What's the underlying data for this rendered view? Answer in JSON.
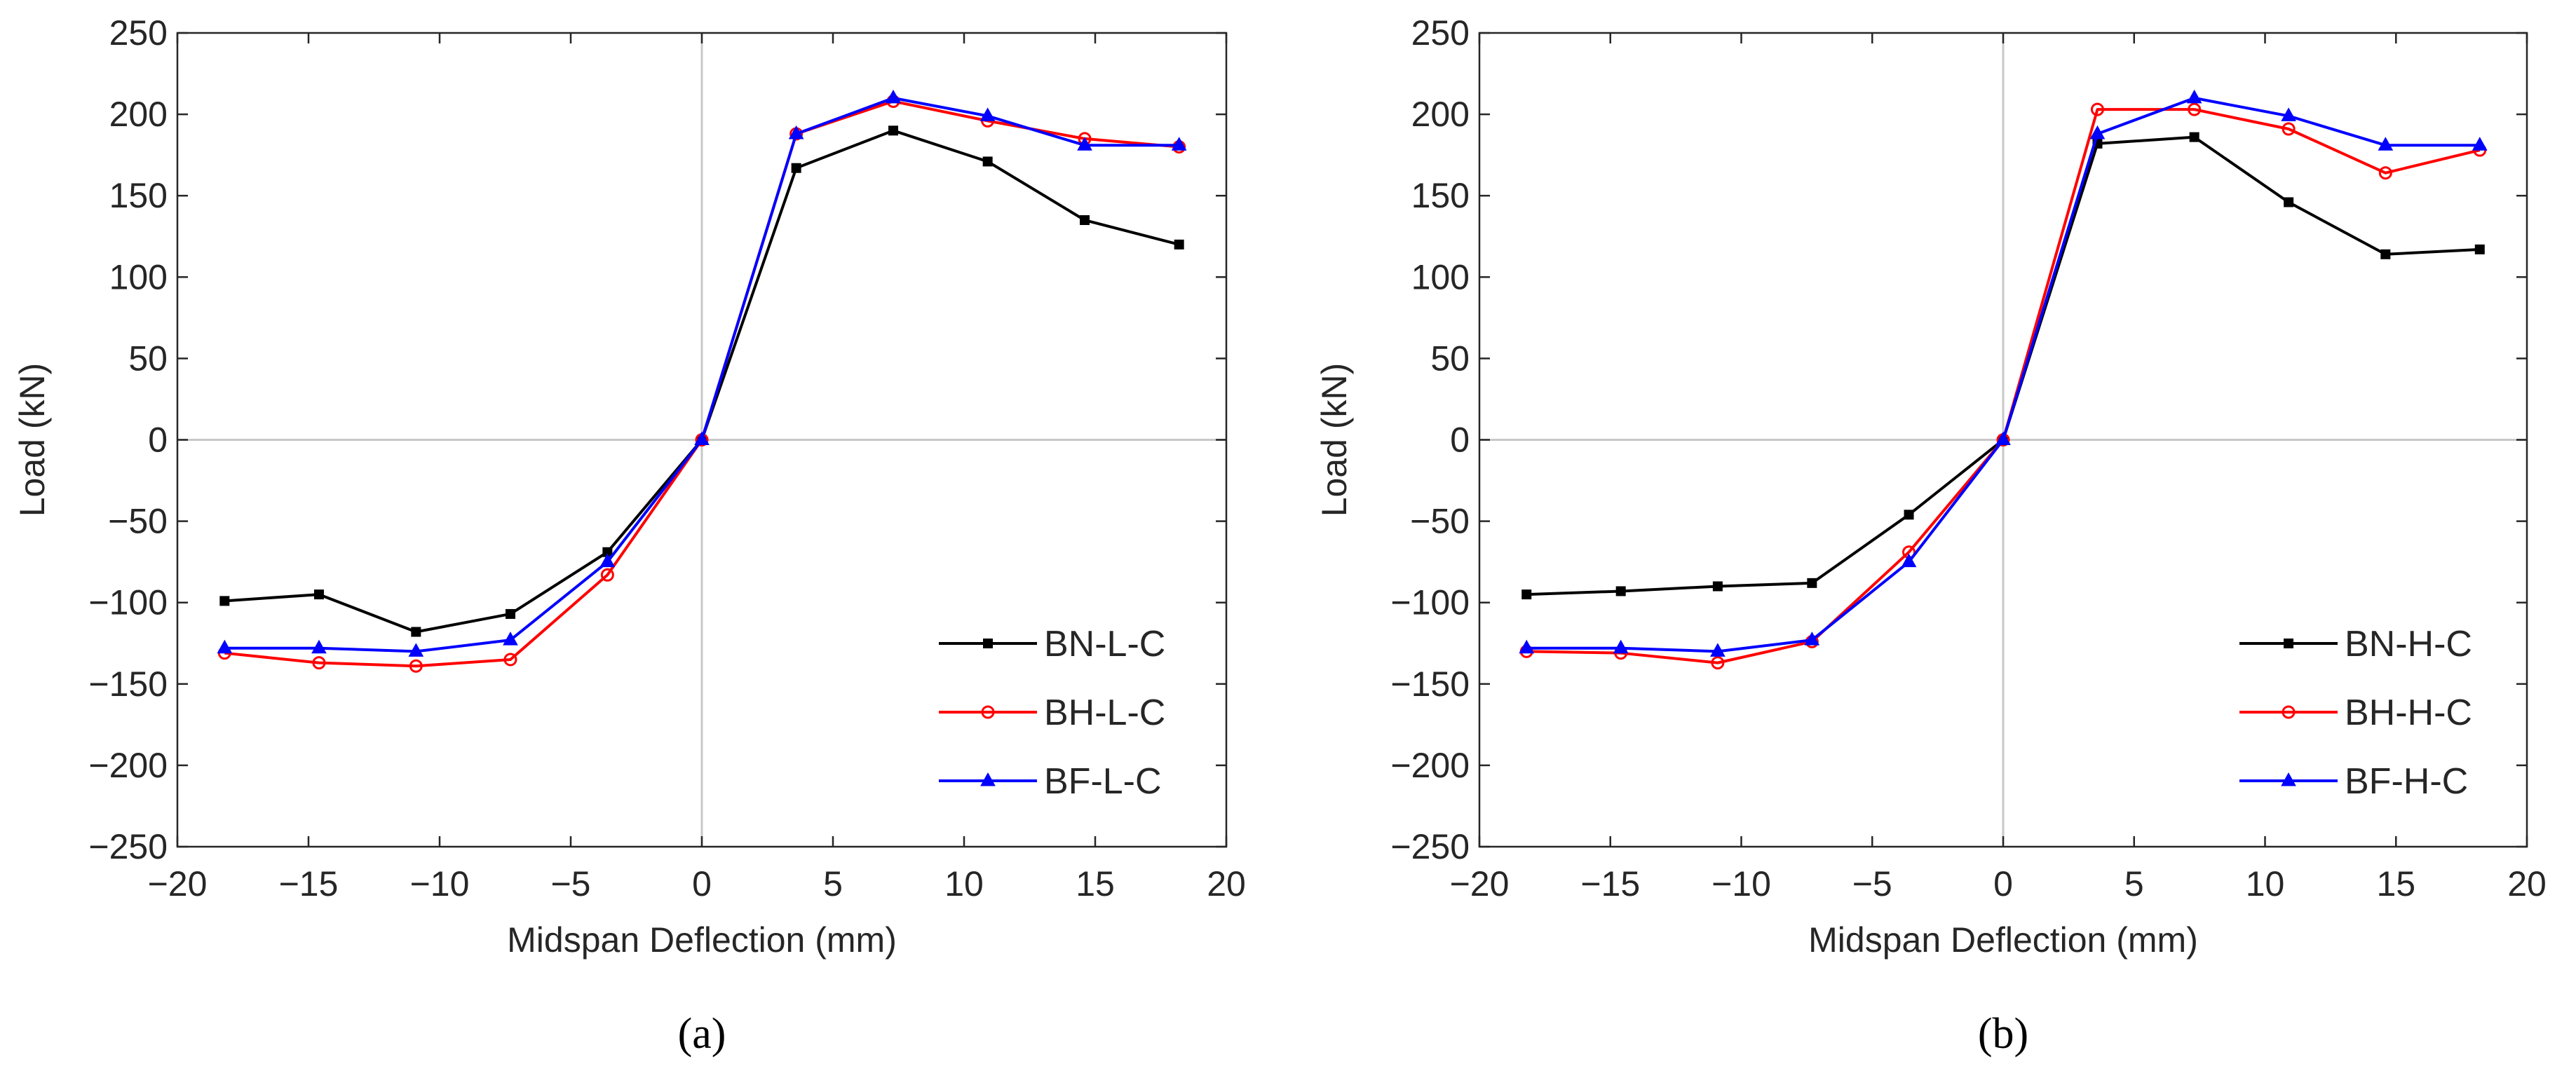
{
  "chart_data": [
    {
      "type": "line",
      "panel_label": "(a)",
      "xlabel": "Midspan Deflection (mm)",
      "ylabel": "Load (kN)",
      "xlim": [
        -20,
        20
      ],
      "ylim": [
        -250,
        250
      ],
      "xticks": [
        -20,
        -15,
        -10,
        -5,
        0,
        5,
        10,
        15,
        20
      ],
      "yticks": [
        250,
        200,
        150,
        100,
        50,
        0,
        -50,
        -100,
        -150,
        -200,
        -250
      ],
      "legend_position": "bottom-right",
      "x": [
        -18.2,
        -14.6,
        -10.9,
        -7.3,
        -3.6,
        0,
        3.6,
        7.3,
        10.9,
        14.6,
        18.2
      ],
      "series": [
        {
          "name": "BN-L-C",
          "color": "#000000",
          "marker": "square",
          "values": [
            -99,
            -95,
            -118,
            -107,
            -69,
            0,
            167,
            190,
            171,
            135,
            120
          ]
        },
        {
          "name": "BH-L-C",
          "color": "#ff0000",
          "marker": "circle",
          "values": [
            -131,
            -137,
            -139,
            -135,
            -83,
            0,
            188,
            208,
            196,
            185,
            180
          ]
        },
        {
          "name": "BF-L-C",
          "color": "#0000ff",
          "marker": "triangle",
          "values": [
            -128,
            -128,
            -130,
            -123,
            -75,
            0,
            188,
            210,
            199,
            181,
            181
          ]
        }
      ]
    },
    {
      "type": "line",
      "panel_label": "(b)",
      "xlabel": "Midspan Deflection (mm)",
      "ylabel": "Load (kN)",
      "xlim": [
        -20,
        20
      ],
      "ylim": [
        -250,
        250
      ],
      "xticks": [
        -20,
        -15,
        -10,
        -5,
        0,
        5,
        10,
        15,
        20
      ],
      "yticks": [
        250,
        200,
        150,
        100,
        50,
        0,
        -50,
        -100,
        -150,
        -200,
        -250
      ],
      "legend_position": "bottom-right",
      "x": [
        -18.2,
        -14.6,
        -10.9,
        -7.3,
        -3.6,
        0,
        3.6,
        7.3,
        10.9,
        14.6,
        18.2
      ],
      "series": [
        {
          "name": "BN-H-C",
          "color": "#000000",
          "marker": "square",
          "values": [
            -95,
            -93,
            -90,
            -88,
            -46,
            0,
            182,
            186,
            146,
            114,
            117
          ]
        },
        {
          "name": "BH-H-C",
          "color": "#ff0000",
          "marker": "circle",
          "values": [
            -130,
            -131,
            -137,
            -124,
            -69,
            0,
            203,
            203,
            191,
            164,
            178
          ]
        },
        {
          "name": "BF-H-C",
          "color": "#0000ff",
          "marker": "triangle",
          "values": [
            -128,
            -128,
            -130,
            -123,
            -75,
            0,
            188,
            210,
            199,
            181,
            181
          ]
        }
      ]
    }
  ]
}
